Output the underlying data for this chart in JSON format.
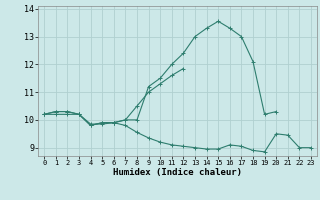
{
  "xlabel": "Humidex (Indice chaleur)",
  "x": [
    0,
    1,
    2,
    3,
    4,
    5,
    6,
    7,
    8,
    9,
    10,
    11,
    12,
    13,
    14,
    15,
    16,
    17,
    18,
    19,
    20,
    21,
    22,
    23
  ],
  "line1": [
    10.2,
    10.3,
    10.3,
    10.2,
    9.8,
    9.9,
    9.9,
    10.0,
    10.0,
    11.2,
    11.5,
    12.0,
    12.4,
    13.0,
    13.3,
    13.55,
    13.3,
    13.0,
    12.1,
    10.2,
    10.3,
    null,
    null,
    null
  ],
  "line2": [
    10.2,
    10.3,
    10.3,
    10.2,
    9.8,
    9.9,
    9.9,
    10.0,
    10.5,
    11.0,
    11.3,
    11.6,
    11.85,
    null,
    null,
    null,
    null,
    null,
    null,
    null,
    null,
    null,
    null,
    null
  ],
  "line3": [
    10.2,
    10.2,
    10.2,
    10.2,
    9.85,
    9.85,
    9.9,
    9.8,
    9.55,
    9.35,
    9.2,
    9.1,
    9.05,
    9.0,
    8.95,
    8.95,
    9.1,
    9.05,
    8.9,
    8.85,
    9.5,
    9.45,
    9.0,
    9.0
  ],
  "line_color": "#2e7d6e",
  "background_color": "#cce8e8",
  "grid_color": "#b0d0d0",
  "ylim": [
    8.7,
    14.1
  ],
  "xlim": [
    -0.5,
    23.5
  ],
  "yticks": [
    9,
    10,
    11,
    12,
    13,
    14
  ],
  "xticks": [
    0,
    1,
    2,
    3,
    4,
    5,
    6,
    7,
    8,
    9,
    10,
    11,
    12,
    13,
    14,
    15,
    16,
    17,
    18,
    19,
    20,
    21,
    22,
    23
  ]
}
